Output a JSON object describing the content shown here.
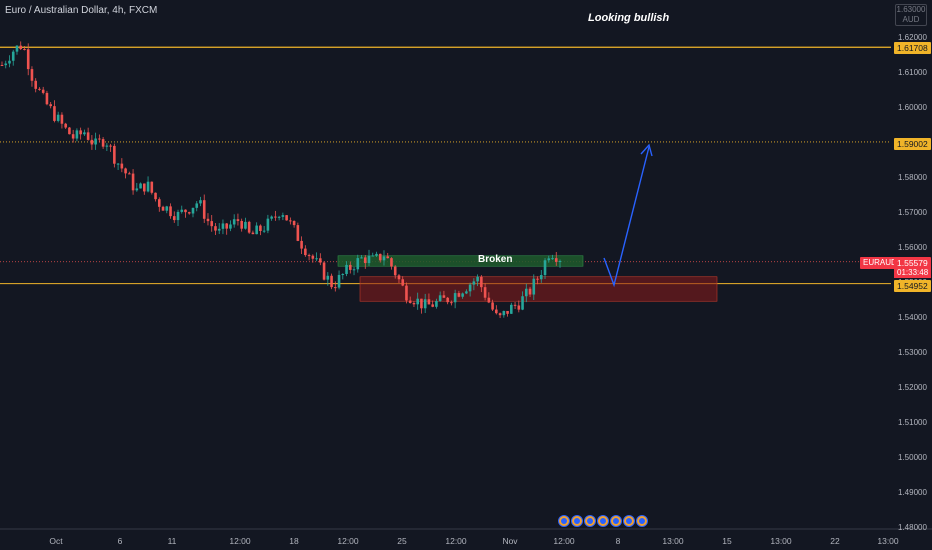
{
  "header": {
    "symbol_line": "Euro / Australian Dollar, 4h, FXCM"
  },
  "annotation": {
    "note": "Looking bullish",
    "zone_label": "Broken"
  },
  "axis_currency": {
    "top": "1.63000",
    "unit": "AUD"
  },
  "price_tags": {
    "resistance": "1.61708",
    "target": "1.59002",
    "support": "1.54952",
    "symbol": "EURAUD",
    "last": "1.55579",
    "countdown": "01:33:48"
  },
  "colors": {
    "background": "#131722",
    "up_candle": "#26a69a",
    "down_candle": "#ef5350",
    "level_line": "#f0b429",
    "arrow": "#2962ff",
    "support_zone": "#8b1a1a",
    "broken_zone": "#1e5a2c"
  },
  "events": {
    "icon": "economic-event-icon",
    "count": 7
  },
  "chart_data": {
    "type": "candlestick",
    "title": "Euro / Australian Dollar, 4h, FXCM",
    "ylim": [
      1.48,
      1.63
    ],
    "y_ticks": [
      "1.48000",
      "1.49000",
      "1.50000",
      "1.51000",
      "1.52000",
      "1.53000",
      "1.54000",
      "1.55000",
      "1.56000",
      "1.57000",
      "1.58000",
      "1.59000",
      "1.60000",
      "1.61000",
      "1.62000"
    ],
    "x_ticks": [
      "Oct",
      "6",
      "11",
      "12:00",
      "18",
      "12:00",
      "25",
      "12:00",
      "Nov",
      "12:00",
      "8",
      "13:00",
      "15",
      "13:00",
      "22",
      "13:00"
    ],
    "close_path": [
      1.612,
      1.616,
      1.618,
      1.608,
      1.602,
      1.598,
      1.594,
      1.591,
      1.593,
      1.589,
      1.591,
      1.585,
      1.581,
      1.576,
      1.578,
      1.573,
      1.571,
      1.569,
      1.571,
      1.573,
      1.567,
      1.564,
      1.566,
      1.568,
      1.563,
      1.565,
      1.567,
      1.571,
      1.566,
      1.561,
      1.557,
      1.553,
      1.549,
      1.552,
      1.555,
      1.557,
      1.556,
      1.558,
      1.553,
      1.547,
      1.545,
      1.543,
      1.544,
      1.545,
      1.547,
      1.549,
      1.551,
      1.545,
      1.539,
      1.542,
      1.544,
      1.547,
      1.552,
      1.559,
      1.557
    ],
    "levels": [
      {
        "name": "resistance",
        "value": 1.61708
      },
      {
        "name": "target",
        "value": 1.59002
      },
      {
        "name": "support",
        "value": 1.54952
      },
      {
        "name": "last",
        "value": 1.55579
      }
    ],
    "zones": [
      {
        "name": "broken",
        "low": 1.5545,
        "high": 1.5575
      },
      {
        "name": "support-zone",
        "low": 1.5445,
        "high": 1.5515
      }
    ],
    "grid": false,
    "legend": "none"
  }
}
